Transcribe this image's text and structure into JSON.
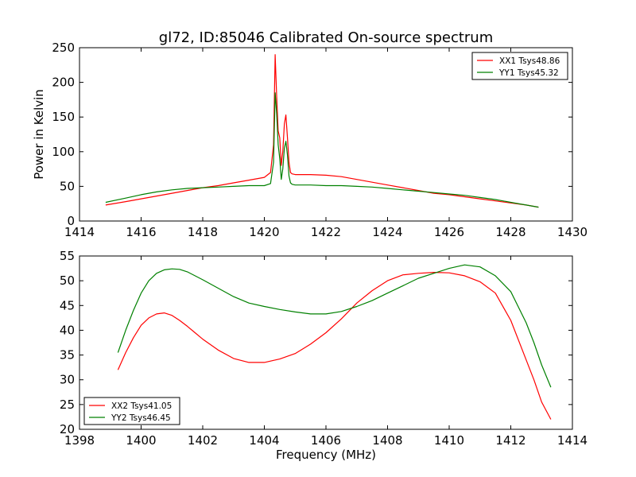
{
  "figure": {
    "title": "gl72, ID:85046 Calibrated On-source spectrum"
  },
  "chart_data": [
    {
      "type": "line",
      "title": "gl72, ID:85046 Calibrated On-source spectrum",
      "xlabel": "",
      "ylabel": "Power in Kelvin",
      "xlim": [
        1414,
        1430
      ],
      "ylim": [
        0,
        250
      ],
      "xticks": [
        "1414",
        "1416",
        "1418",
        "1420",
        "1422",
        "1424",
        "1426",
        "1428",
        "1430"
      ],
      "yticks": [
        "0",
        "50",
        "100",
        "150",
        "200",
        "250"
      ],
      "grid": false,
      "legend_position": "top-right",
      "series": [
        {
          "name": "XX1 Tsys48.86",
          "color": "#ff0000",
          "x": [
            1414.85,
            1415.5,
            1416,
            1416.5,
            1417,
            1417.5,
            1418,
            1418.5,
            1419,
            1419.5,
            1420,
            1420.2,
            1420.3,
            1420.35,
            1420.4,
            1420.45,
            1420.5,
            1420.55,
            1420.6,
            1420.65,
            1420.7,
            1420.75,
            1420.8,
            1420.85,
            1420.9,
            1421,
            1421.5,
            1422,
            1422.5,
            1423,
            1423.5,
            1424,
            1424.5,
            1425,
            1425.5,
            1426,
            1426.5,
            1427,
            1427.5,
            1428,
            1428.5,
            1428.9
          ],
          "values": [
            23,
            28,
            32,
            36,
            40,
            44,
            48,
            51,
            55,
            59,
            63,
            70,
            110,
            240,
            180,
            130,
            120,
            80,
            100,
            140,
            153,
            120,
            85,
            70,
            68,
            67,
            67,
            66,
            64,
            60,
            56,
            52,
            48,
            44,
            40,
            38,
            35,
            32,
            29,
            26,
            23,
            20
          ]
        },
        {
          "name": "YY1 Tsys45.32",
          "color": "#008000",
          "x": [
            1414.85,
            1415.5,
            1416,
            1416.5,
            1417,
            1417.5,
            1418,
            1418.5,
            1419,
            1419.5,
            1420,
            1420.2,
            1420.3,
            1420.35,
            1420.4,
            1420.45,
            1420.5,
            1420.55,
            1420.6,
            1420.65,
            1420.7,
            1420.75,
            1420.8,
            1420.85,
            1420.9,
            1421,
            1421.5,
            1422,
            1422.5,
            1423,
            1423.5,
            1424,
            1424.5,
            1425,
            1425.5,
            1426,
            1426.5,
            1427,
            1427.5,
            1428,
            1428.5,
            1428.9
          ],
          "values": [
            27,
            33,
            38,
            42,
            45,
            47,
            48,
            49,
            50,
            51,
            51,
            54,
            85,
            185,
            155,
            110,
            90,
            60,
            75,
            105,
            115,
            95,
            65,
            55,
            53,
            52,
            52,
            51,
            51,
            50,
            49,
            47,
            45,
            43,
            41,
            39,
            37,
            34,
            31,
            27,
            23,
            20
          ]
        }
      ]
    },
    {
      "type": "line",
      "title": "",
      "xlabel": "Frequency (MHz)",
      "ylabel": "",
      "xlim": [
        1398,
        1414
      ],
      "ylim": [
        20,
        55
      ],
      "xticks": [
        "1398",
        "1400",
        "1402",
        "1404",
        "1406",
        "1408",
        "1410",
        "1412",
        "1414"
      ],
      "yticks": [
        "20",
        "25",
        "30",
        "35",
        "40",
        "45",
        "50",
        "55"
      ],
      "grid": false,
      "legend_position": "bottom-left",
      "series": [
        {
          "name": "XX2 Tsys41.05",
          "color": "#ff0000",
          "x": [
            1399.25,
            1399.5,
            1399.75,
            1400,
            1400.25,
            1400.5,
            1400.75,
            1401,
            1401.25,
            1401.5,
            1401.75,
            1402,
            1402.5,
            1403,
            1403.5,
            1404,
            1404.5,
            1405,
            1405.5,
            1406,
            1406.5,
            1407,
            1407.5,
            1408,
            1408.5,
            1409,
            1409.5,
            1410,
            1410.5,
            1411,
            1411.5,
            1412,
            1412.5,
            1412.75,
            1413,
            1413.3
          ],
          "values": [
            32,
            35.5,
            38.5,
            41,
            42.5,
            43.3,
            43.5,
            43,
            42,
            40.8,
            39.5,
            38.2,
            36,
            34.3,
            33.5,
            33.5,
            34.2,
            35.3,
            37.2,
            39.5,
            42.3,
            45.5,
            48,
            50,
            51.2,
            51.5,
            51.7,
            51.6,
            51,
            49.8,
            47.5,
            42,
            34,
            30,
            25.5,
            22
          ]
        },
        {
          "name": "YY2 Tsys46.45",
          "color": "#008000",
          "x": [
            1399.25,
            1399.5,
            1399.75,
            1400,
            1400.25,
            1400.5,
            1400.75,
            1401,
            1401.25,
            1401.5,
            1401.75,
            1402,
            1402.5,
            1403,
            1403.5,
            1404,
            1404.5,
            1405,
            1405.5,
            1406,
            1406.5,
            1407,
            1407.5,
            1408,
            1408.5,
            1409,
            1409.5,
            1410,
            1410.5,
            1411,
            1411.5,
            1412,
            1412.5,
            1412.75,
            1413,
            1413.3
          ],
          "values": [
            35.5,
            40,
            44,
            47.5,
            50,
            51.5,
            52.2,
            52.4,
            52.3,
            51.8,
            51,
            50.2,
            48.5,
            46.8,
            45.5,
            44.8,
            44.2,
            43.7,
            43.3,
            43.3,
            43.8,
            44.8,
            46,
            47.5,
            49,
            50.5,
            51.5,
            52.5,
            53.2,
            52.8,
            51,
            47.8,
            41.5,
            37.5,
            33,
            28.5
          ]
        }
      ]
    }
  ]
}
